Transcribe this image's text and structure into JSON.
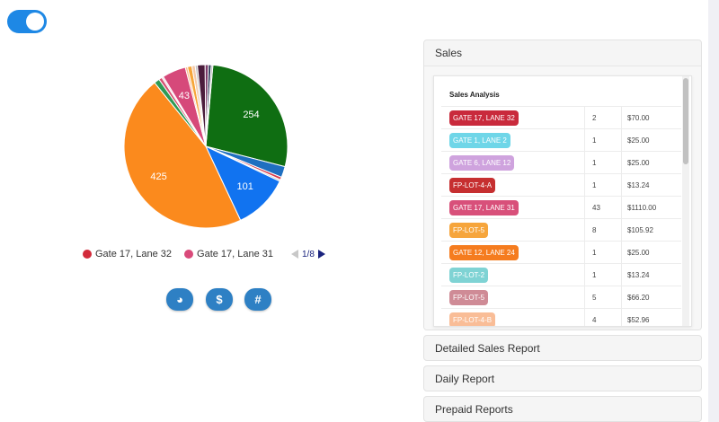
{
  "toggle": {
    "on": true
  },
  "chart_data": {
    "type": "pie",
    "total": 1000,
    "slices": [
      {
        "label": "",
        "value": 254,
        "color": "#0f6e12",
        "show_label": true,
        "display": "254"
      },
      {
        "label": "",
        "value": 20,
        "color": "#1f6fc0",
        "show_label": false
      },
      {
        "label": "",
        "value": 5,
        "color": "#d93b4a",
        "show_label": false
      },
      {
        "label": "",
        "value": 3,
        "color": "#c9c9c9",
        "show_label": false
      },
      {
        "label": "",
        "value": 101,
        "color": "#1173f0",
        "show_label": true,
        "display": "101"
      },
      {
        "label": "",
        "value": 425,
        "color": "#fb8a1d",
        "show_label": true,
        "display": "425"
      },
      {
        "label": "",
        "value": 10,
        "color": "#2e9a55",
        "show_label": false
      },
      {
        "label": "",
        "value": 6,
        "color": "#d65372",
        "show_label": false
      },
      {
        "label": "",
        "value": 3,
        "color": "#f2c9d8",
        "show_label": false
      },
      {
        "label": "Gate 17, Lane 31",
        "value": 43,
        "color": "#d6497a",
        "show_label": true,
        "display": "43"
      },
      {
        "label": "",
        "value": 4,
        "color": "#f9b98e",
        "show_label": false
      },
      {
        "label": "",
        "value": 8,
        "color": "#f6a63a",
        "show_label": false
      },
      {
        "label": "",
        "value": 6,
        "color": "#f4c9a8",
        "show_label": false
      },
      {
        "label": "",
        "value": 4,
        "color": "#c1c1c1",
        "show_label": false
      },
      {
        "label": "",
        "value": 14,
        "color": "#4b1d3c",
        "show_label": false
      },
      {
        "label": "",
        "value": 6,
        "color": "#7b3a69",
        "show_label": false
      },
      {
        "label": "",
        "value": 5,
        "color": "#233252",
        "show_label": false
      },
      {
        "label": "",
        "value": 3,
        "color": "#b0b0b0",
        "show_label": false
      }
    ],
    "legend": [
      {
        "label": "Gate 17, Lane 32",
        "color": "#d22a3a"
      },
      {
        "label": "Gate 17, Lane 31",
        "color": "#d94a7a"
      }
    ],
    "legend_page": "1/8"
  },
  "buttons": [
    {
      "name": "pie-chart-button",
      "icon": "pie-chart-icon",
      "glyph": "◕"
    },
    {
      "name": "dollar-button",
      "icon": "dollar-icon",
      "glyph": "$"
    },
    {
      "name": "hash-button",
      "icon": "hash-icon",
      "glyph": "#"
    }
  ],
  "accordion": {
    "sales": {
      "title": "Sales",
      "table_title": "Sales Analysis",
      "rows": [
        {
          "label": "GATE 17, LANE 32",
          "color": "#c92a3c",
          "count": "2",
          "amount": "$70.00"
        },
        {
          "label": "GATE 1, LANE 2",
          "color": "#6fd6e8",
          "count": "1",
          "amount": "$25.00"
        },
        {
          "label": "GATE 6, LANE 12",
          "color": "#cfa3de",
          "count": "1",
          "amount": "$25.00"
        },
        {
          "label": "FP-LOT-4-A",
          "color": "#c62f30",
          "count": "1",
          "amount": "$13.24"
        },
        {
          "label": "GATE 17, LANE 31",
          "color": "#d8507a",
          "count": "43",
          "amount": "$1110.00"
        },
        {
          "label": "FP-LOT-5",
          "color": "#f6a53c",
          "count": "8",
          "amount": "$105.92"
        },
        {
          "label": "GATE 12, LANE 24",
          "color": "#f57c1f",
          "count": "1",
          "amount": "$25.00"
        },
        {
          "label": "FP-LOT-2",
          "color": "#7fd3d4",
          "count": "1",
          "amount": "$13.24"
        },
        {
          "label": "FP-LOT-5",
          "color": "#cf8b96",
          "count": "5",
          "amount": "$66.20"
        },
        {
          "label": "FP-LOT-4-B",
          "color": "#f9bd97",
          "count": "4",
          "amount": "$52.96"
        }
      ]
    },
    "sections": [
      {
        "title": "Detailed Sales Report"
      },
      {
        "title": "Daily Report"
      },
      {
        "title": "Prepaid Reports"
      }
    ]
  }
}
